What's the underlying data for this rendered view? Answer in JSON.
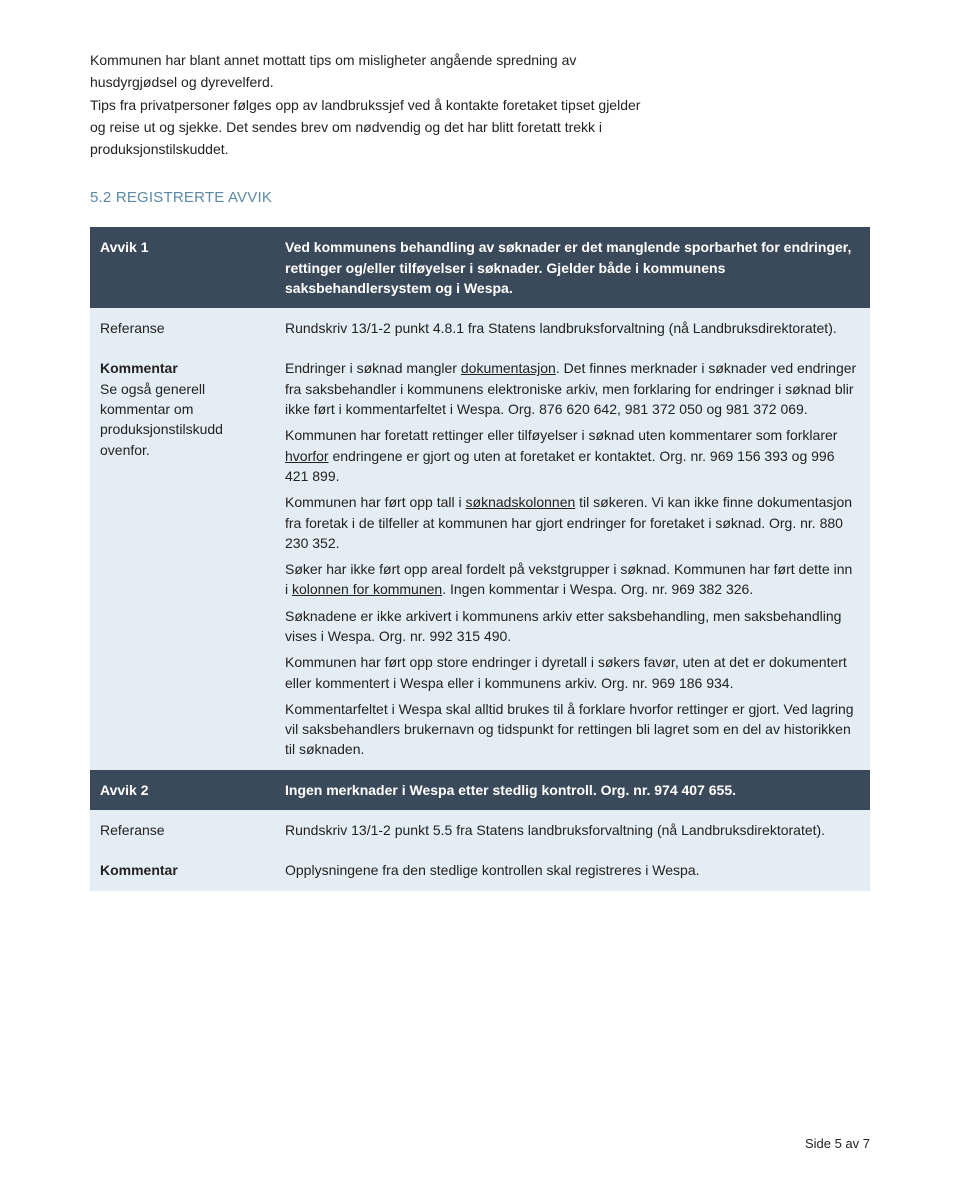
{
  "intro": {
    "p1a": "Kommunen har blant annet mottatt tips om misligheter angående spredning av",
    "p1b": "husdyrgjødsel og dyrevelferd.",
    "p2a": "Tips fra privatpersoner følges opp av landbrukssjef ved å kontakte foretaket tipset gjelder",
    "p2b": "og reise ut og sjekke. Det sendes brev om nødvendig og det har blitt foretatt trekk i",
    "p2c": "produksjonstilskuddet."
  },
  "section_heading": "5.2 REGISTRERTE AVVIK",
  "rows": [
    {
      "type": "head",
      "label": "Avvik 1",
      "content_html": "Ved kommunens behandling av søknader er det manglende sporbarhet for endringer, rettinger og/eller tilføyelser i søknader. Gjelder både i kommunens saksbehandlersystem og i Wespa."
    },
    {
      "type": "body",
      "label": "Referanse",
      "content_html": "Rundskriv 13/1-2 punkt 4.8.1 fra Statens landbruksforvaltning (nå Landbruksdirektoratet)."
    },
    {
      "type": "body",
      "label_html": "<span class='bold'>Kommentar</span><br>Se også generell kommentar om produksjonstilskudd ovenfor.",
      "content_html": "<p class='mb'>Endringer i søknad mangler <span class='underline'>dokumentasjon</span>. Det finnes merknader i søknader ved endringer fra saksbehandler i kommunens elektroniske arkiv, men forklaring for endringer i søknad blir ikke ført i kommentarfeltet i Wespa. Org. 876 620 642, 981 372 050 og 981 372 069.</p><p class='mb'>Kommunen har foretatt rettinger eller tilføyelser i søknad uten kommentarer som forklarer <span class='underline'>hvorfor</span> endringene er gjort og uten at foretaket er kontaktet. Org. nr. 969 156 393 og 996 421 899.</p><p class='mb'>Kommunen har ført opp tall i <span class='underline'>søknadskolonnen</span> til søkeren. Vi kan ikke finne dokumentasjon fra foretak i de tilfeller at kommunen har gjort endringer for foretaket i søknad. Org. nr. 880 230 352.</p><p class='mb'>Søker har ikke ført opp areal fordelt på vekstgrupper i søknad. Kommunen har ført dette inn i <span class='underline'>kolonnen for kommunen</span>. Ingen kommentar i Wespa. Org. nr. 969 382 326.</p><p class='mb'>Søknadene er ikke arkivert i kommunens arkiv etter saksbehandling, men saksbehandling vises i Wespa. Org. nr. 992 315 490.</p><p class='mb'>Kommunen har ført opp store endringer i dyretall i søkers favør, uten at det er dokumentert eller kommentert i Wespa eller i kommunens arkiv. Org. nr. 969 186 934.</p><p>Kommentarfeltet i Wespa skal alltid brukes til å forklare hvorfor rettinger er gjort. Ved lagring vil saksbehandlers brukernavn og tidspunkt for rettingen bli lagret som en del av historikken til søknaden.</p>"
    },
    {
      "type": "head",
      "label": "Avvik 2",
      "content_html": "Ingen merknader i Wespa etter stedlig kontroll.  Org. nr. 974 407 655."
    },
    {
      "type": "body",
      "label": "Referanse",
      "content_html": "Rundskriv 13/1-2 punkt 5.5 fra Statens landbruksforvaltning (nå Landbruksdirektoratet)."
    },
    {
      "type": "body",
      "label": "Kommentar",
      "label_bold": true,
      "content_html": "Opplysningene fra den stedlige kontrollen skal registreres i Wespa."
    }
  ],
  "footer": "Side 5 av 7",
  "colors": {
    "heading": "#5b8aa6",
    "head_bg": "#3b4a5a",
    "body_bg": "#e4edf3"
  }
}
